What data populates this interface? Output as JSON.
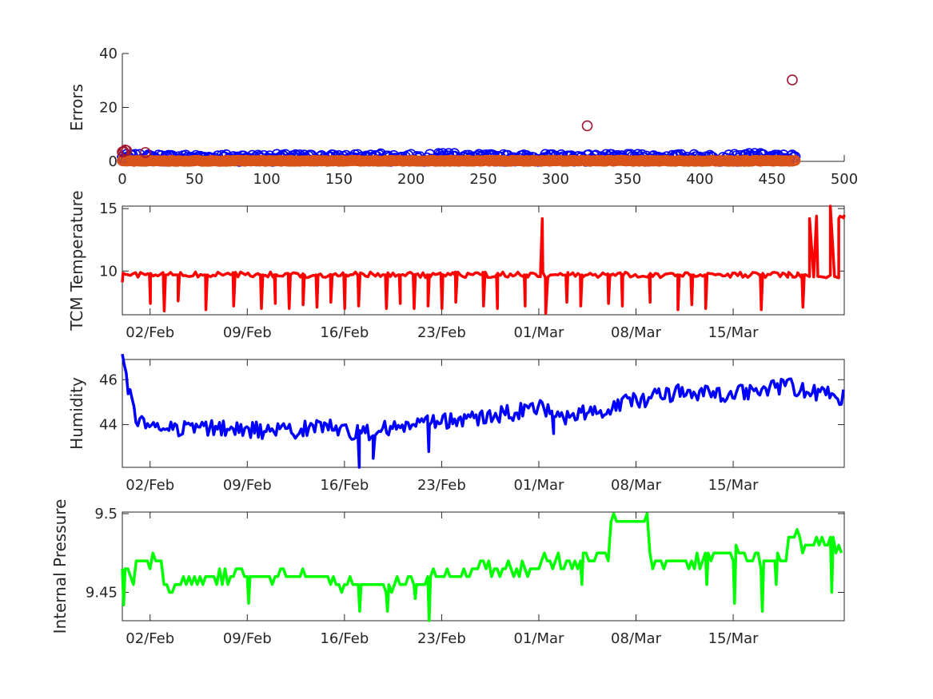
{
  "chart_data": [
    {
      "id": "errors",
      "type": "scatter",
      "ylabel": "Errors",
      "xlim": [
        0,
        500
      ],
      "ylim": [
        0,
        40
      ],
      "xticks": [
        0,
        50,
        100,
        150,
        200,
        250,
        300,
        350,
        400,
        450,
        500
      ],
      "xtick_labels": [
        "0",
        "50",
        "100",
        "150",
        "200",
        "250",
        "300",
        "350",
        "400",
        "450",
        "500"
      ],
      "yticks": [
        0,
        20,
        40
      ],
      "ytick_labels": [
        "0",
        "20",
        "40"
      ],
      "box": "open",
      "series": [
        {
          "marker": "open-circle",
          "color": "#0000ff",
          "x": [
            0,
            1,
            2,
            3,
            179,
            219,
            222,
            226,
            230,
            434,
            438,
            442
          ],
          "y": [
            0.3,
            0.8,
            1.2,
            0.5,
            2.8,
            2.9,
            2.9,
            2.9,
            2.9,
            2.9,
            2.9,
            2.9
          ],
          "baseline_band": {
            "x_start": 0,
            "x_end": 466,
            "y_low": 0,
            "y_high": 2.6
          }
        },
        {
          "marker": "open-circle",
          "color": "#a2142f",
          "x": [
            0,
            1,
            2,
            3,
            16,
            322,
            464
          ],
          "y": [
            3.5,
            3.6,
            4.2,
            4.0,
            3.3,
            13.2,
            30.2
          ]
        },
        {
          "marker": "open-circle",
          "color": "#d95319",
          "baseline_band": {
            "x_start": 0,
            "x_end": 466,
            "y_low": 0,
            "y_high": 0.4
          }
        }
      ]
    },
    {
      "id": "tcm-temperature",
      "type": "line",
      "ylabel": "TCM Temperature",
      "color": "#ff0000",
      "xlim": [
        "2024-01-31",
        "2024-03-23"
      ],
      "ylim": [
        6.5,
        15.2
      ],
      "yticks": [
        10,
        15
      ],
      "ytick_labels": [
        "10",
        "15"
      ],
      "xticks": [
        "2024-02-02",
        "2024-02-09",
        "2024-02-16",
        "2024-02-23",
        "2024-03-01",
        "2024-03-08",
        "2024-03-15"
      ],
      "xtick_labels": [
        "02/Feb",
        "09/Feb",
        "16/Feb",
        "23/Feb",
        "01/Mar",
        "08/Mar",
        "15/Mar"
      ],
      "baseline": 9.7,
      "dips": [
        [
          "2024-02-02",
          7.4
        ],
        [
          "2024-02-03",
          6.8
        ],
        [
          "2024-02-04",
          7.6
        ],
        [
          "2024-02-06",
          6.9
        ],
        [
          "2024-02-08",
          7.2
        ],
        [
          "2024-02-10",
          7.0
        ],
        [
          "2024-02-11",
          7.4
        ],
        [
          "2024-02-12",
          7.0
        ],
        [
          "2024-02-13",
          7.3
        ],
        [
          "2024-02-14",
          7.1
        ],
        [
          "2024-02-15",
          7.5
        ],
        [
          "2024-02-16",
          7.0
        ],
        [
          "2024-02-17",
          7.2
        ],
        [
          "2024-02-19",
          7.0
        ],
        [
          "2024-02-20",
          7.4
        ],
        [
          "2024-02-21",
          7.0
        ],
        [
          "2024-02-22",
          7.2
        ],
        [
          "2024-02-23",
          7.0
        ],
        [
          "2024-02-24",
          7.5
        ],
        [
          "2024-02-26",
          7.2
        ],
        [
          "2024-02-27",
          7.0
        ],
        [
          "2024-02-29",
          7.2
        ],
        [
          "2024-03-03",
          7.5
        ],
        [
          "2024-03-04",
          7.2
        ],
        [
          "2024-03-06",
          7.4
        ],
        [
          "2024-03-07",
          7.2
        ],
        [
          "2024-03-09",
          7.5
        ],
        [
          "2024-03-11",
          6.9
        ],
        [
          "2024-03-12",
          7.3
        ],
        [
          "2024-03-13",
          7.0
        ],
        [
          "2024-03-17",
          6.9
        ],
        [
          "2024-03-20",
          7.1
        ]
      ],
      "extra_points": [
        [
          "2024-01-31",
          9.1
        ],
        [
          "2024-03-01 06:00",
          14.2
        ],
        [
          "2024-03-01 12:00",
          6.6
        ],
        [
          "2024-03-19",
          9.9
        ],
        [
          "2024-03-20 12:00",
          14.2
        ],
        [
          "2024-03-21",
          14.4
        ],
        [
          "2024-03-22",
          15.2
        ],
        [
          "2024-03-23",
          14.5
        ]
      ]
    },
    {
      "id": "humidity",
      "type": "line",
      "ylabel": "Humidity",
      "color": "#0000ff",
      "xlim": [
        "2024-01-31",
        "2024-03-23"
      ],
      "ylim": [
        42.1,
        46.9
      ],
      "yticks": [
        44,
        46
      ],
      "ytick_labels": [
        "44",
        "46"
      ],
      "xticks": [
        "2024-02-02",
        "2024-02-09",
        "2024-02-16",
        "2024-02-23",
        "2024-03-01",
        "2024-03-08",
        "2024-03-15"
      ],
      "xtick_labels": [
        "02/Feb",
        "09/Feb",
        "16/Feb",
        "23/Feb",
        "01/Mar",
        "08/Mar",
        "15/Mar"
      ],
      "trend": [
        [
          "2024-01-31",
          46.8
        ],
        [
          "2024-02-01",
          44.1
        ],
        [
          "2024-02-03",
          43.9
        ],
        [
          "2024-02-07",
          43.8
        ],
        [
          "2024-02-12",
          43.7
        ],
        [
          "2024-02-15",
          44.0
        ],
        [
          "2024-02-17",
          43.6
        ],
        [
          "2024-02-20",
          43.9
        ],
        [
          "2024-02-23",
          44.1
        ],
        [
          "2024-02-27",
          44.4
        ],
        [
          "2024-03-01",
          44.8
        ],
        [
          "2024-03-03",
          44.3
        ],
        [
          "2024-03-05",
          44.6
        ],
        [
          "2024-03-08",
          45.1
        ],
        [
          "2024-03-11",
          45.4
        ],
        [
          "2024-03-15",
          45.4
        ],
        [
          "2024-03-19",
          45.7
        ],
        [
          "2024-03-23",
          45.2
        ]
      ],
      "dips": [
        [
          "2024-02-17",
          42.1
        ],
        [
          "2024-02-18",
          42.5
        ],
        [
          "2024-02-22",
          42.8
        ],
        [
          "2024-03-02",
          43.6
        ]
      ]
    },
    {
      "id": "internal-pressure",
      "type": "line",
      "ylabel": "Internal Pressure",
      "color": "#00ff00",
      "xlim": [
        "2024-01-31",
        "2024-03-23"
      ],
      "ylim": [
        9.432,
        9.501
      ],
      "yticks": [
        9.45,
        9.5
      ],
      "ytick_labels": [
        "9.45",
        "9.5"
      ],
      "xticks": [
        "2024-02-02",
        "2024-02-09",
        "2024-02-16",
        "2024-02-23",
        "2024-03-01",
        "2024-03-08",
        "2024-03-15"
      ],
      "xtick_labels": [
        "02/Feb",
        "09/Feb",
        "16/Feb",
        "23/Feb",
        "01/Mar",
        "08/Mar",
        "15/Mar"
      ],
      "step_levels": [
        [
          "2024-01-31",
          9.46
        ],
        [
          "2024-02-01",
          9.47
        ],
        [
          "2024-02-03",
          9.455
        ],
        [
          "2024-02-05",
          9.46
        ],
        [
          "2024-02-15",
          9.455
        ],
        [
          "2024-02-22",
          9.46
        ],
        [
          "2024-02-25",
          9.465
        ],
        [
          "2024-03-01",
          9.47
        ],
        [
          "2024-03-05",
          9.475
        ],
        [
          "2024-03-06",
          9.495
        ],
        [
          "2024-03-09",
          9.47
        ],
        [
          "2024-03-13",
          9.475
        ],
        [
          "2024-03-16",
          9.47
        ],
        [
          "2024-03-19",
          9.485
        ],
        [
          "2024-03-20",
          9.48
        ],
        [
          "2024-03-23",
          9.485
        ]
      ],
      "dips": [
        [
          "2024-01-31",
          9.442
        ],
        [
          "2024-02-09",
          9.443
        ],
        [
          "2024-02-17",
          9.438
        ],
        [
          "2024-02-19",
          9.438
        ],
        [
          "2024-02-21",
          9.446
        ],
        [
          "2024-02-22",
          9.432
        ],
        [
          "2024-03-04",
          9.455
        ],
        [
          "2024-03-13",
          9.455
        ],
        [
          "2024-03-15",
          9.443
        ],
        [
          "2024-03-17",
          9.438
        ],
        [
          "2024-03-18",
          9.455
        ],
        [
          "2024-03-22",
          9.45
        ]
      ]
    }
  ]
}
